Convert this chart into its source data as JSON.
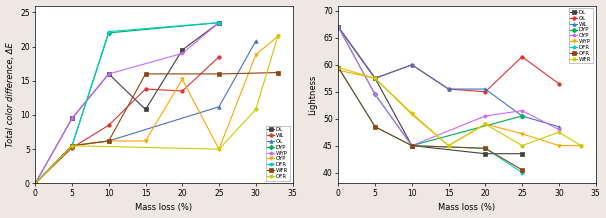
{
  "left_ylabel": "Total color difference, ΔE",
  "right_ylabel": "Lightness",
  "xlabel": "Mass loss (%)",
  "series_left": [
    {
      "label": "DL",
      "color": "#404040",
      "marker": "s",
      "x": [
        0,
        5,
        10,
        15,
        20,
        25
      ],
      "y": [
        0,
        9.5,
        16.0,
        10.8,
        19.5,
        23.5
      ]
    },
    {
      "label": "WL",
      "color": "#e03030",
      "marker": "o",
      "x": [
        0,
        5,
        10,
        15,
        20,
        25
      ],
      "y": [
        0,
        5.2,
        8.5,
        13.8,
        13.5,
        18.5
      ]
    },
    {
      "label": "OL",
      "color": "#4472c4",
      "marker": "^",
      "x": [
        0,
        5,
        10,
        25,
        30
      ],
      "y": [
        0,
        5.5,
        6.2,
        11.2,
        20.8
      ]
    },
    {
      "label": "DYP",
      "color": "#00b050",
      "marker": "D",
      "x": [
        0,
        5,
        10,
        25
      ],
      "y": [
        0,
        5.5,
        22.0,
        23.5
      ]
    },
    {
      "label": "WYP",
      "color": "#cc66ff",
      "marker": "p",
      "x": [
        0,
        5,
        10,
        20,
        25
      ],
      "y": [
        0,
        9.5,
        16.0,
        19.0,
        23.5
      ]
    },
    {
      "label": "OYP",
      "color": "#ffa500",
      "marker": "v",
      "x": [
        0,
        5,
        10,
        15,
        20,
        25,
        30,
        33
      ],
      "y": [
        0,
        5.5,
        6.2,
        6.2,
        15.2,
        5.0,
        18.8,
        21.5
      ]
    },
    {
      "label": "DFR",
      "color": "#00cccc",
      "marker": "h",
      "x": [
        0,
        5,
        10,
        25
      ],
      "y": [
        0,
        5.5,
        22.2,
        23.5
      ]
    },
    {
      "label": "WFR",
      "color": "#8b4513",
      "marker": "s",
      "x": [
        0,
        5,
        10,
        15,
        25,
        33
      ],
      "y": [
        0,
        5.5,
        6.2,
        16.0,
        16.0,
        16.2
      ]
    },
    {
      "label": "OFR",
      "color": "#cccc00",
      "marker": "8",
      "x": [
        0,
        5,
        25,
        30,
        33
      ],
      "y": [
        0,
        5.5,
        5.0,
        10.8,
        21.5
      ]
    }
  ],
  "series_right": [
    {
      "label": "DL",
      "color": "#404040",
      "marker": "s",
      "x": [
        0,
        5,
        10,
        20,
        25
      ],
      "y": [
        67.0,
        57.5,
        45.0,
        43.5,
        43.5
      ]
    },
    {
      "label": "OL",
      "color": "#e03030",
      "marker": "o",
      "x": [
        0,
        5,
        10,
        15,
        20,
        25,
        30
      ],
      "y": [
        67.0,
        57.5,
        60.0,
        55.5,
        55.0,
        61.5,
        56.5
      ]
    },
    {
      "label": "WL",
      "color": "#4472c4",
      "marker": "^",
      "x": [
        0,
        5,
        10,
        15,
        20,
        25,
        30
      ],
      "y": [
        67.0,
        57.5,
        60.0,
        55.5,
        55.5,
        50.5,
        48.5
      ]
    },
    {
      "label": "DYP",
      "color": "#00b050",
      "marker": "D",
      "x": [
        0,
        5,
        10,
        25
      ],
      "y": [
        67.0,
        54.5,
        45.0,
        50.5
      ]
    },
    {
      "label": "OYP",
      "color": "#cc66ff",
      "marker": "p",
      "x": [
        0,
        5,
        10,
        20,
        25,
        30
      ],
      "y": [
        67.0,
        54.5,
        45.0,
        50.5,
        51.5,
        48.0
      ]
    },
    {
      "label": "WYP",
      "color": "#ffa500",
      "marker": "v",
      "x": [
        0,
        5,
        10,
        15,
        20,
        25,
        30,
        33
      ],
      "y": [
        59.0,
        57.5,
        50.8,
        45.0,
        49.0,
        47.2,
        45.0,
        45.0
      ]
    },
    {
      "label": "DFR",
      "color": "#00cccc",
      "marker": "h",
      "x": [
        0,
        5,
        10,
        20,
        25
      ],
      "y": [
        59.5,
        48.5,
        45.0,
        44.5,
        40.0
      ]
    },
    {
      "label": "OFR",
      "color": "#8b4513",
      "marker": "s",
      "x": [
        0,
        5,
        10,
        20,
        25
      ],
      "y": [
        59.5,
        48.5,
        45.0,
        44.5,
        40.5
      ]
    },
    {
      "label": "WFR",
      "color": "#cccc00",
      "marker": "8",
      "x": [
        0,
        5,
        10,
        15,
        20,
        25,
        30,
        33
      ],
      "y": [
        59.5,
        57.5,
        51.0,
        45.0,
        49.0,
        45.0,
        47.5,
        45.0
      ]
    }
  ],
  "left_xlim": [
    0,
    35
  ],
  "left_ylim": [
    0,
    26
  ],
  "right_xlim": [
    0,
    35
  ],
  "right_ylim": [
    38,
    71
  ],
  "left_yticks": [
    0,
    5,
    10,
    15,
    20,
    25
  ],
  "right_yticks": [
    40,
    45,
    50,
    55,
    60,
    65,
    70
  ],
  "xticks": [
    0,
    5,
    10,
    15,
    20,
    25,
    30,
    35
  ],
  "bg_color": "#ede8e3"
}
